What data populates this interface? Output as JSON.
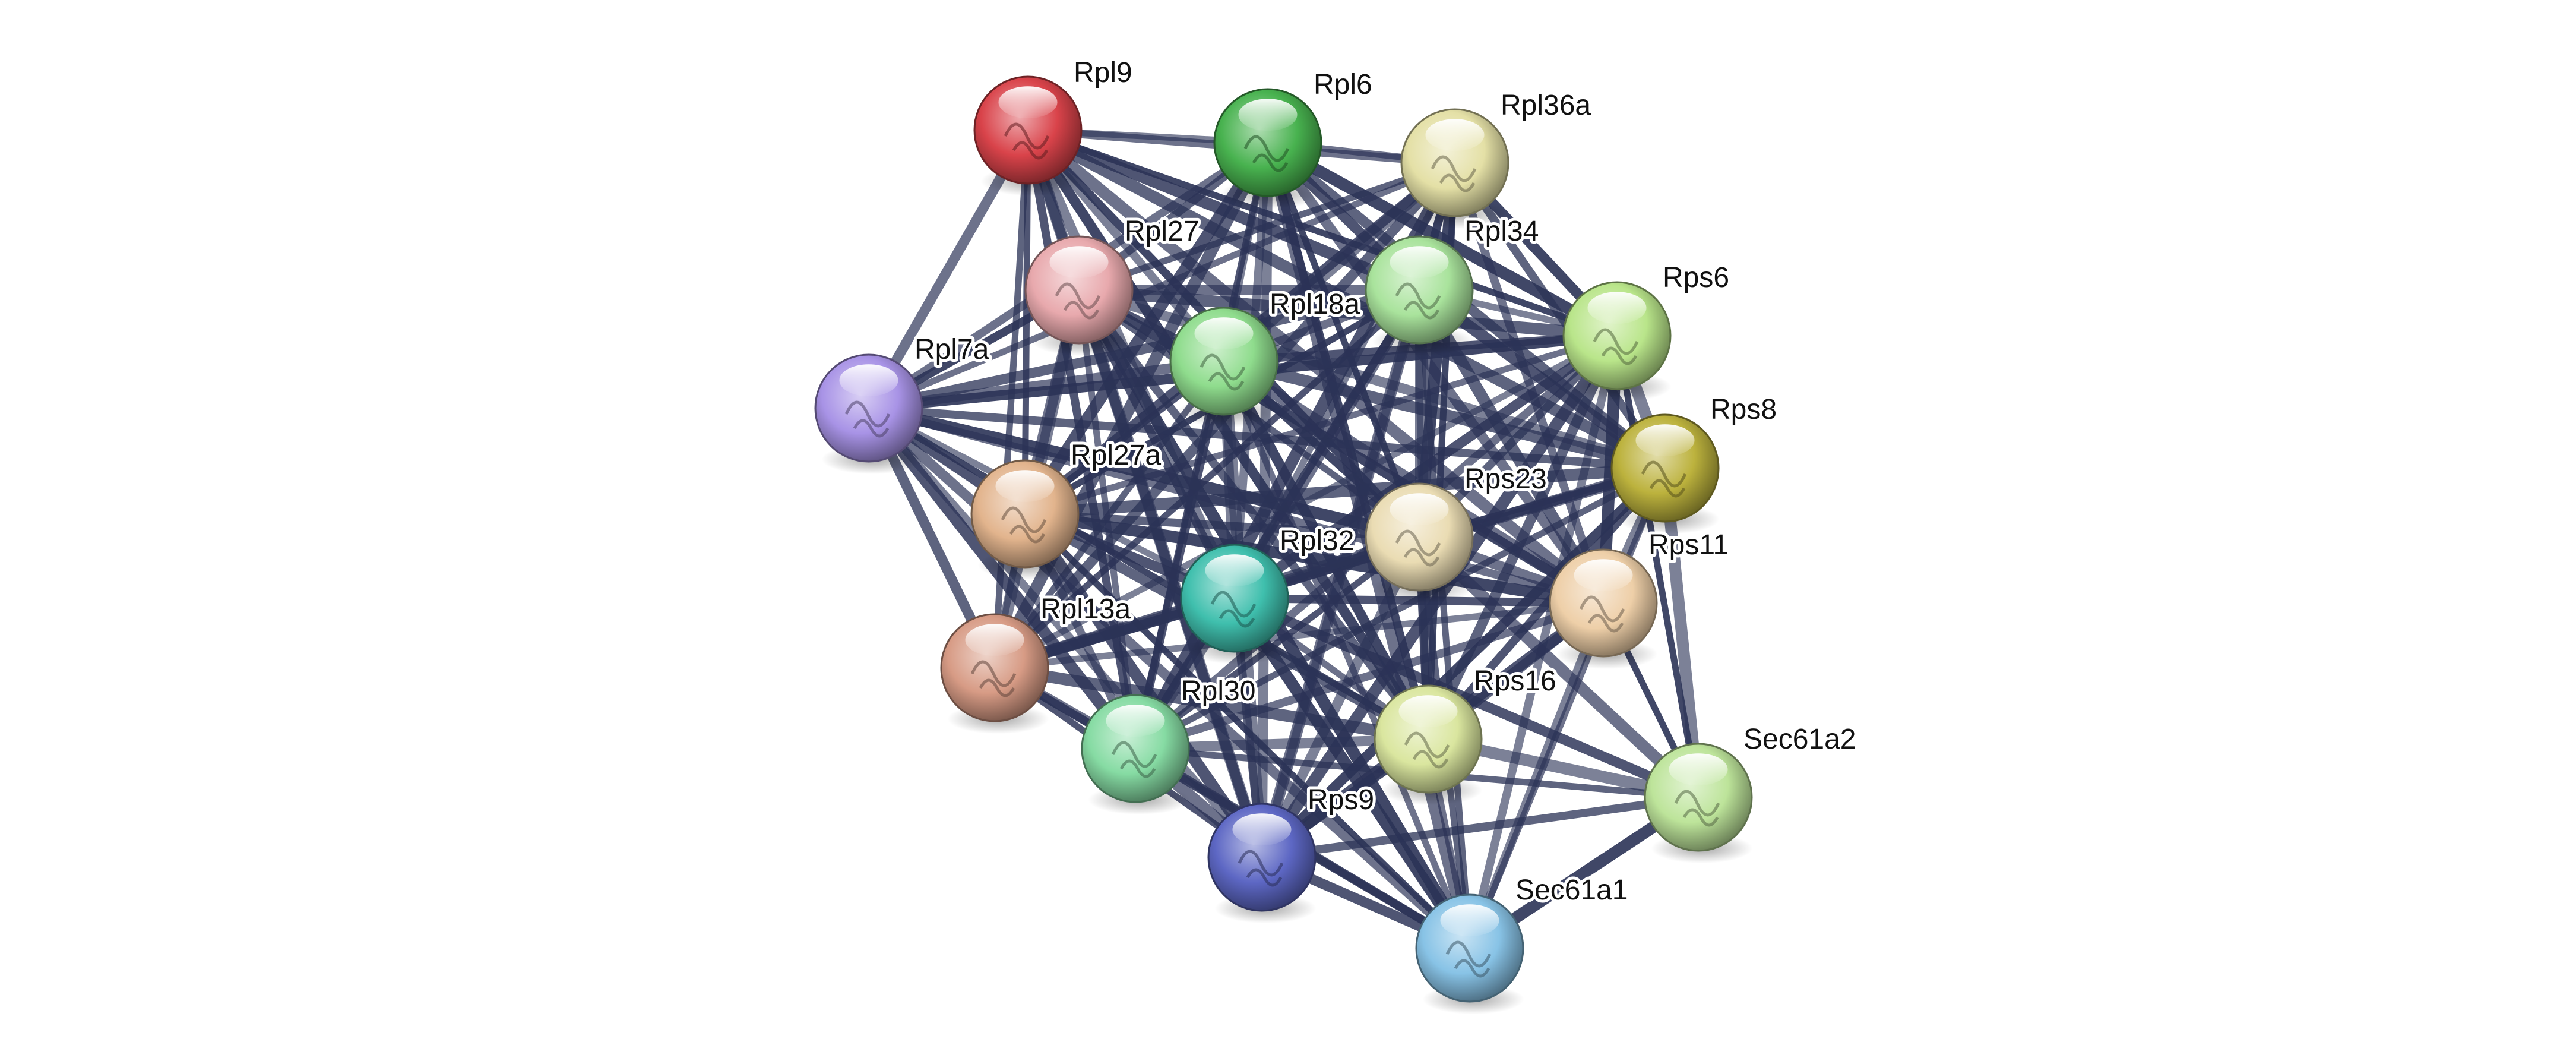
{
  "network": {
    "nodes": [
      {
        "id": "Rpl9",
        "label": "Rpl9",
        "color": "#d9434a"
      },
      {
        "id": "Rpl6",
        "label": "Rpl6",
        "color": "#48b24f"
      },
      {
        "id": "Rpl36a",
        "label": "Rpl36a",
        "color": "#e4e0a6"
      },
      {
        "id": "Rpl27",
        "label": "Rpl27",
        "color": "#e8a9ad"
      },
      {
        "id": "Rpl34",
        "label": "Rpl34",
        "color": "#a9e39c"
      },
      {
        "id": "Rps6",
        "label": "Rps6",
        "color": "#b9e58a"
      },
      {
        "id": "Rpl18a",
        "label": "Rpl18a",
        "color": "#8fdc8d"
      },
      {
        "id": "Rpl7a",
        "label": "Rpl7a",
        "color": "#a893e6"
      },
      {
        "id": "Rps8",
        "label": "Rps8",
        "color": "#bcb23d"
      },
      {
        "id": "Rpl27a",
        "label": "Rpl27a",
        "color": "#e2b48d"
      },
      {
        "id": "Rps23",
        "label": "Rps23",
        "color": "#eadcb3"
      },
      {
        "id": "Rpl32",
        "label": "Rpl32",
        "color": "#3fbfad"
      },
      {
        "id": "Rps11",
        "label": "Rps11",
        "color": "#eecfa8"
      },
      {
        "id": "Rpl13a",
        "label": "Rpl13a",
        "color": "#d79b85"
      },
      {
        "id": "Rpl30",
        "label": "Rpl30",
        "color": "#86dba3"
      },
      {
        "id": "Rps16",
        "label": "Rps16",
        "color": "#dae69f"
      },
      {
        "id": "Sec61a2",
        "label": "Sec61a2",
        "color": "#bde49a"
      },
      {
        "id": "Rps9",
        "label": "Rps9",
        "color": "#5d67c4"
      },
      {
        "id": "Sec61a1",
        "label": "Sec61a1",
        "color": "#88c3e6"
      }
    ],
    "edges": [
      [
        "Rpl9",
        "Rpl6"
      ],
      [
        "Rpl9",
        "Rpl36a"
      ],
      [
        "Rpl9",
        "Rpl27"
      ],
      [
        "Rpl9",
        "Rpl34"
      ],
      [
        "Rpl9",
        "Rps6"
      ],
      [
        "Rpl9",
        "Rpl18a"
      ],
      [
        "Rpl9",
        "Rpl7a"
      ],
      [
        "Rpl9",
        "Rps8"
      ],
      [
        "Rpl9",
        "Rpl27a"
      ],
      [
        "Rpl9",
        "Rps23"
      ],
      [
        "Rpl9",
        "Rpl32"
      ],
      [
        "Rpl9",
        "Rps11"
      ],
      [
        "Rpl9",
        "Rpl13a"
      ],
      [
        "Rpl9",
        "Rpl30"
      ],
      [
        "Rpl9",
        "Rps16"
      ],
      [
        "Rpl9",
        "Rps9"
      ],
      [
        "Rpl6",
        "Rpl36a"
      ],
      [
        "Rpl6",
        "Rpl27"
      ],
      [
        "Rpl6",
        "Rpl34"
      ],
      [
        "Rpl6",
        "Rps6"
      ],
      [
        "Rpl6",
        "Rpl18a"
      ],
      [
        "Rpl6",
        "Rpl7a"
      ],
      [
        "Rpl6",
        "Rps8"
      ],
      [
        "Rpl6",
        "Rpl27a"
      ],
      [
        "Rpl6",
        "Rps23"
      ],
      [
        "Rpl6",
        "Rpl32"
      ],
      [
        "Rpl6",
        "Rps11"
      ],
      [
        "Rpl6",
        "Rpl13a"
      ],
      [
        "Rpl6",
        "Rpl30"
      ],
      [
        "Rpl6",
        "Rps16"
      ],
      [
        "Rpl6",
        "Rps9"
      ],
      [
        "Rpl6",
        "Sec61a1"
      ],
      [
        "Rpl36a",
        "Rpl27"
      ],
      [
        "Rpl36a",
        "Rpl34"
      ],
      [
        "Rpl36a",
        "Rps6"
      ],
      [
        "Rpl36a",
        "Rpl18a"
      ],
      [
        "Rpl36a",
        "Rpl7a"
      ],
      [
        "Rpl36a",
        "Rps8"
      ],
      [
        "Rpl36a",
        "Rpl27a"
      ],
      [
        "Rpl36a",
        "Rps23"
      ],
      [
        "Rpl36a",
        "Rpl32"
      ],
      [
        "Rpl36a",
        "Rps11"
      ],
      [
        "Rpl36a",
        "Rpl13a"
      ],
      [
        "Rpl36a",
        "Rpl30"
      ],
      [
        "Rpl36a",
        "Rps16"
      ],
      [
        "Rpl36a",
        "Rps9"
      ],
      [
        "Rpl27",
        "Rpl34"
      ],
      [
        "Rpl27",
        "Rps6"
      ],
      [
        "Rpl27",
        "Rpl18a"
      ],
      [
        "Rpl27",
        "Rpl7a"
      ],
      [
        "Rpl27",
        "Rps8"
      ],
      [
        "Rpl27",
        "Rpl27a"
      ],
      [
        "Rpl27",
        "Rps23"
      ],
      [
        "Rpl27",
        "Rpl32"
      ],
      [
        "Rpl27",
        "Rps11"
      ],
      [
        "Rpl27",
        "Rpl13a"
      ],
      [
        "Rpl27",
        "Rpl30"
      ],
      [
        "Rpl27",
        "Rps16"
      ],
      [
        "Rpl27",
        "Rps9"
      ],
      [
        "Rpl27",
        "Sec61a1"
      ],
      [
        "Rpl34",
        "Rps6"
      ],
      [
        "Rpl34",
        "Rpl18a"
      ],
      [
        "Rpl34",
        "Rpl7a"
      ],
      [
        "Rpl34",
        "Rps8"
      ],
      [
        "Rpl34",
        "Rpl27a"
      ],
      [
        "Rpl34",
        "Rps23"
      ],
      [
        "Rpl34",
        "Rpl32"
      ],
      [
        "Rpl34",
        "Rps11"
      ],
      [
        "Rpl34",
        "Rpl13a"
      ],
      [
        "Rpl34",
        "Rpl30"
      ],
      [
        "Rpl34",
        "Rps16"
      ],
      [
        "Rpl34",
        "Rps9"
      ],
      [
        "Rpl34",
        "Sec61a1"
      ],
      [
        "Rps6",
        "Rpl18a"
      ],
      [
        "Rps6",
        "Rpl7a"
      ],
      [
        "Rps6",
        "Rps8"
      ],
      [
        "Rps6",
        "Rpl27a"
      ],
      [
        "Rps6",
        "Rps23"
      ],
      [
        "Rps6",
        "Rpl32"
      ],
      [
        "Rps6",
        "Rps11"
      ],
      [
        "Rps6",
        "Rpl13a"
      ],
      [
        "Rps6",
        "Rpl30"
      ],
      [
        "Rps6",
        "Rps16"
      ],
      [
        "Rps6",
        "Rps9"
      ],
      [
        "Rps6",
        "Sec61a2"
      ],
      [
        "Rps6",
        "Sec61a1"
      ],
      [
        "Rpl18a",
        "Rpl7a"
      ],
      [
        "Rpl18a",
        "Rps8"
      ],
      [
        "Rpl18a",
        "Rpl27a"
      ],
      [
        "Rpl18a",
        "Rps23"
      ],
      [
        "Rpl18a",
        "Rpl32"
      ],
      [
        "Rpl18a",
        "Rps11"
      ],
      [
        "Rpl18a",
        "Rpl13a"
      ],
      [
        "Rpl18a",
        "Rpl30"
      ],
      [
        "Rpl18a",
        "Rps16"
      ],
      [
        "Rpl18a",
        "Rps9"
      ],
      [
        "Rpl18a",
        "Sec61a1"
      ],
      [
        "Rpl7a",
        "Rps8"
      ],
      [
        "Rpl7a",
        "Rpl27a"
      ],
      [
        "Rpl7a",
        "Rps23"
      ],
      [
        "Rpl7a",
        "Rpl32"
      ],
      [
        "Rpl7a",
        "Rps11"
      ],
      [
        "Rpl7a",
        "Rpl13a"
      ],
      [
        "Rpl7a",
        "Rpl30"
      ],
      [
        "Rpl7a",
        "Rps16"
      ],
      [
        "Rpl7a",
        "Rps9"
      ],
      [
        "Rpl7a",
        "Sec61a1"
      ],
      [
        "Rps8",
        "Rpl27a"
      ],
      [
        "Rps8",
        "Rps23"
      ],
      [
        "Rps8",
        "Rpl32"
      ],
      [
        "Rps8",
        "Rps11"
      ],
      [
        "Rps8",
        "Rpl13a"
      ],
      [
        "Rps8",
        "Rpl30"
      ],
      [
        "Rps8",
        "Rps16"
      ],
      [
        "Rps8",
        "Rps9"
      ],
      [
        "Rps8",
        "Sec61a2"
      ],
      [
        "Rps8",
        "Sec61a1"
      ],
      [
        "Rpl27a",
        "Rps23"
      ],
      [
        "Rpl27a",
        "Rpl32"
      ],
      [
        "Rpl27a",
        "Rps11"
      ],
      [
        "Rpl27a",
        "Rpl13a"
      ],
      [
        "Rpl27a",
        "Rpl30"
      ],
      [
        "Rpl27a",
        "Rps16"
      ],
      [
        "Rpl27a",
        "Rps9"
      ],
      [
        "Rpl27a",
        "Sec61a1"
      ],
      [
        "Rps23",
        "Rpl32"
      ],
      [
        "Rps23",
        "Rps11"
      ],
      [
        "Rps23",
        "Rpl13a"
      ],
      [
        "Rps23",
        "Rpl30"
      ],
      [
        "Rps23",
        "Rps16"
      ],
      [
        "Rps23",
        "Rps9"
      ],
      [
        "Rps23",
        "Sec61a2"
      ],
      [
        "Rps23",
        "Sec61a1"
      ],
      [
        "Rpl32",
        "Rps11"
      ],
      [
        "Rpl32",
        "Rpl13a"
      ],
      [
        "Rpl32",
        "Rpl30"
      ],
      [
        "Rpl32",
        "Rps16"
      ],
      [
        "Rpl32",
        "Rps9"
      ],
      [
        "Rpl32",
        "Sec61a2"
      ],
      [
        "Rpl32",
        "Sec61a1"
      ],
      [
        "Rps11",
        "Rpl13a"
      ],
      [
        "Rps11",
        "Rpl30"
      ],
      [
        "Rps11",
        "Rps16"
      ],
      [
        "Rps11",
        "Rps9"
      ],
      [
        "Rps11",
        "Sec61a2"
      ],
      [
        "Rps11",
        "Sec61a1"
      ],
      [
        "Rpl13a",
        "Rpl30"
      ],
      [
        "Rpl13a",
        "Rps16"
      ],
      [
        "Rpl13a",
        "Rps9"
      ],
      [
        "Rpl13a",
        "Sec61a1"
      ],
      [
        "Rpl30",
        "Rps16"
      ],
      [
        "Rpl30",
        "Rps9"
      ],
      [
        "Rpl30",
        "Sec61a2"
      ],
      [
        "Rpl30",
        "Sec61a1"
      ],
      [
        "Rps16",
        "Rps9"
      ],
      [
        "Rps16",
        "Sec61a2"
      ],
      [
        "Rps16",
        "Sec61a1"
      ],
      [
        "Rps9",
        "Sec61a2"
      ],
      [
        "Rps9",
        "Sec61a1"
      ],
      [
        "Sec61a2",
        "Sec61a1"
      ]
    ]
  }
}
